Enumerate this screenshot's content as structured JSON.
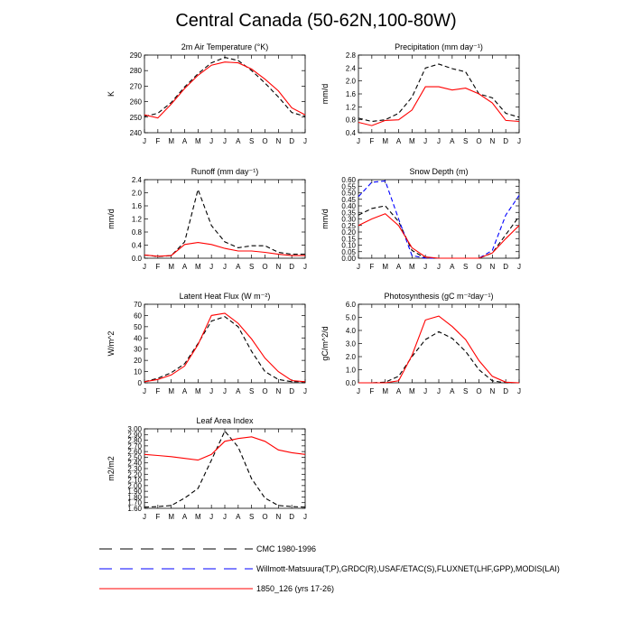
{
  "figure": {
    "title": "Central Canada (50-62N,100-80W)"
  },
  "legend": [
    {
      "label": "CMC 1980-1996",
      "color": "#000000",
      "dash": "dashed"
    },
    {
      "label": "Willmott-Matsuura(T,P),GRDC(R),USAF/ETAC(S),FLUXNET(LHF,GPP),MODIS(LAI)",
      "color": "#0000ff",
      "dash": "dashed"
    },
    {
      "label": "1850_126 (yrs 17-26)",
      "color": "#ff0000",
      "dash": "solid"
    }
  ],
  "chart_data": [
    {
      "type": "line",
      "title": "2m Air Temperature (°K)",
      "ylabel": "K",
      "categories": [
        "J",
        "F",
        "M",
        "A",
        "M",
        "J",
        "J",
        "A",
        "S",
        "O",
        "N",
        "D",
        "J"
      ],
      "ylim": [
        240,
        290
      ],
      "yticks": [
        "240",
        "250",
        "260",
        "270",
        "280",
        "290"
      ],
      "series": [
        {
          "name": "CMC 1980-1996",
          "color": "#000000",
          "dash": "dashed",
          "values": [
            250.5,
            252.5,
            259.5,
            269.5,
            278,
            285,
            288.5,
            286.5,
            280,
            272,
            263,
            253,
            250.5
          ]
        },
        {
          "name": "1850_126 (yrs 17-26)",
          "color": "#ff0000",
          "dash": "solid",
          "values": [
            251.5,
            249.5,
            258.5,
            268.5,
            277,
            283.5,
            285.5,
            285,
            281,
            274.5,
            267,
            256,
            251.5
          ]
        }
      ]
    },
    {
      "type": "line",
      "title": "Precipitation (mm day⁻¹)",
      "ylabel": "mm/d",
      "categories": [
        "J",
        "F",
        "M",
        "A",
        "M",
        "J",
        "J",
        "A",
        "S",
        "O",
        "N",
        "D",
        "J"
      ],
      "ylim": [
        0.4,
        2.8
      ],
      "yticks": [
        "0.4",
        "0.8",
        "1.2",
        "1.6",
        "2.0",
        "2.4",
        "2.8"
      ],
      "series": [
        {
          "name": "CMC 1980-1996",
          "color": "#000000",
          "dash": "dashed",
          "values": [
            0.85,
            0.75,
            0.8,
            1.0,
            1.5,
            2.4,
            2.52,
            2.38,
            2.28,
            1.6,
            1.48,
            1.0,
            0.88
          ]
        },
        {
          "name": "1850_126 (yrs 17-26)",
          "color": "#ff0000",
          "dash": "solid",
          "values": [
            0.72,
            0.62,
            0.78,
            0.8,
            1.1,
            1.82,
            1.82,
            1.72,
            1.78,
            1.6,
            1.32,
            0.78,
            0.75
          ]
        }
      ]
    },
    {
      "type": "line",
      "title": "Runoff (mm day⁻¹)",
      "ylabel": "mm/d",
      "categories": [
        "J",
        "F",
        "M",
        "A",
        "M",
        "J",
        "J",
        "A",
        "S",
        "O",
        "N",
        "D",
        "J"
      ],
      "ylim": [
        0.0,
        2.4
      ],
      "yticks": [
        "0.0",
        "0.4",
        "0.8",
        "1.2",
        "1.6",
        "2.0",
        "2.4"
      ],
      "series": [
        {
          "name": "CMC 1980-1996",
          "color": "#000000",
          "dash": "dashed",
          "values": [
            0.1,
            0.05,
            0.08,
            0.5,
            2.1,
            1.0,
            0.5,
            0.32,
            0.38,
            0.38,
            0.18,
            0.12,
            0.12
          ]
        },
        {
          "name": "1850_126 (yrs 17-26)",
          "color": "#ff0000",
          "dash": "solid",
          "values": [
            0.1,
            0.06,
            0.08,
            0.42,
            0.48,
            0.42,
            0.3,
            0.22,
            0.22,
            0.18,
            0.12,
            0.08,
            0.08
          ]
        }
      ]
    },
    {
      "type": "line",
      "title": "Snow Depth (m)",
      "ylabel": "mm/d",
      "categories": [
        "J",
        "F",
        "M",
        "A",
        "M",
        "J",
        "J",
        "A",
        "S",
        "O",
        "N",
        "D",
        "J"
      ],
      "ylim": [
        0.0,
        0.6
      ],
      "yticks": [
        "0.00",
        "0.05",
        "0.10",
        "0.15",
        "0.20",
        "0.25",
        "0.30",
        "0.35",
        "0.40",
        "0.45",
        "0.50",
        "0.55",
        "0.60"
      ],
      "series": [
        {
          "name": "CMC 1980-1996",
          "color": "#000000",
          "dash": "dashed",
          "values": [
            0.33,
            0.38,
            0.4,
            0.28,
            0.06,
            0.0,
            0.0,
            0.0,
            0.0,
            0.0,
            0.04,
            0.18,
            0.32
          ]
        },
        {
          "name": "Willmott-Matsuura(T,P),GRDC(R),USAF/ETAC(S),FLUXNET(LHF,GPP),MODIS(LAI)",
          "color": "#0000ff",
          "dash": "dashed",
          "values": [
            0.47,
            0.58,
            0.59,
            0.3,
            0.02,
            0.0,
            0.0,
            0.0,
            0.0,
            0.0,
            0.06,
            0.33,
            0.48
          ]
        },
        {
          "name": "1850_126 (yrs 17-26)",
          "color": "#ff0000",
          "dash": "solid",
          "values": [
            0.25,
            0.3,
            0.34,
            0.25,
            0.08,
            0.01,
            0.0,
            0.0,
            0.0,
            0.0,
            0.04,
            0.15,
            0.25
          ]
        }
      ]
    },
    {
      "type": "line",
      "title": "Latent Heat Flux (W m⁻²)",
      "ylabel": "W/m^2",
      "categories": [
        "J",
        "F",
        "M",
        "A",
        "M",
        "J",
        "J",
        "A",
        "S",
        "O",
        "N",
        "D",
        "J"
      ],
      "ylim": [
        0,
        70
      ],
      "yticks": [
        "0",
        "10",
        "20",
        "30",
        "40",
        "50",
        "60",
        "70"
      ],
      "series": [
        {
          "name": "CMC 1980-1996",
          "color": "#000000",
          "dash": "dashed",
          "values": [
            1,
            4,
            9,
            17,
            35,
            55,
            59,
            50,
            28,
            10,
            3,
            1,
            1
          ]
        },
        {
          "name": "1850_126 (yrs 17-26)",
          "color": "#ff0000",
          "dash": "solid",
          "values": [
            1,
            3,
            7,
            15,
            34,
            60,
            62,
            53,
            39,
            22,
            10,
            2,
            1
          ]
        }
      ]
    },
    {
      "type": "line",
      "title": "Photosynthesis (gC m⁻²day⁻¹)",
      "ylabel": "gC/m^2/d",
      "categories": [
        "J",
        "F",
        "M",
        "A",
        "M",
        "J",
        "J",
        "A",
        "S",
        "O",
        "N",
        "D",
        "J"
      ],
      "ylim": [
        0.0,
        6.0
      ],
      "yticks": [
        "0.0",
        "1.0",
        "2.0",
        "3.0",
        "4.0",
        "5.0",
        "6.0"
      ],
      "series": [
        {
          "name": "CMC 1980-1996",
          "color": "#000000",
          "dash": "dashed",
          "values": [
            0.0,
            0.0,
            0.05,
            0.5,
            2.0,
            3.3,
            3.9,
            3.4,
            2.4,
            1.0,
            0.15,
            0.0,
            0.0
          ]
        },
        {
          "name": "1850_126 (yrs 17-26)",
          "color": "#ff0000",
          "dash": "solid",
          "values": [
            0.0,
            0.0,
            0.0,
            0.15,
            2.1,
            4.8,
            5.1,
            4.3,
            3.3,
            1.7,
            0.5,
            0.05,
            0.0
          ]
        }
      ]
    },
    {
      "type": "line",
      "title": "Leaf Area Index",
      "ylabel": "m2/m2",
      "categories": [
        "J",
        "F",
        "M",
        "A",
        "M",
        "J",
        "J",
        "A",
        "S",
        "O",
        "N",
        "D",
        "J"
      ],
      "ylim": [
        1.6,
        3.0
      ],
      "yticks": [
        "1.60",
        "1.70",
        "1.80",
        "1.90",
        "2.00",
        "2.10",
        "2.20",
        "2.30",
        "2.40",
        "2.50",
        "2.60",
        "2.70",
        "2.80",
        "2.90",
        "3.00"
      ],
      "series": [
        {
          "name": "CMC 1980-1996",
          "color": "#000000",
          "dash": "dashed",
          "values": [
            1.62,
            1.63,
            1.65,
            1.78,
            1.95,
            2.45,
            2.96,
            2.68,
            2.12,
            1.78,
            1.65,
            1.63,
            1.62
          ]
        },
        {
          "name": "1850_126 (yrs 17-26)",
          "color": "#ff0000",
          "dash": "solid",
          "values": [
            2.55,
            2.53,
            2.51,
            2.48,
            2.45,
            2.55,
            2.78,
            2.83,
            2.86,
            2.78,
            2.63,
            2.58,
            2.55
          ]
        }
      ]
    }
  ]
}
